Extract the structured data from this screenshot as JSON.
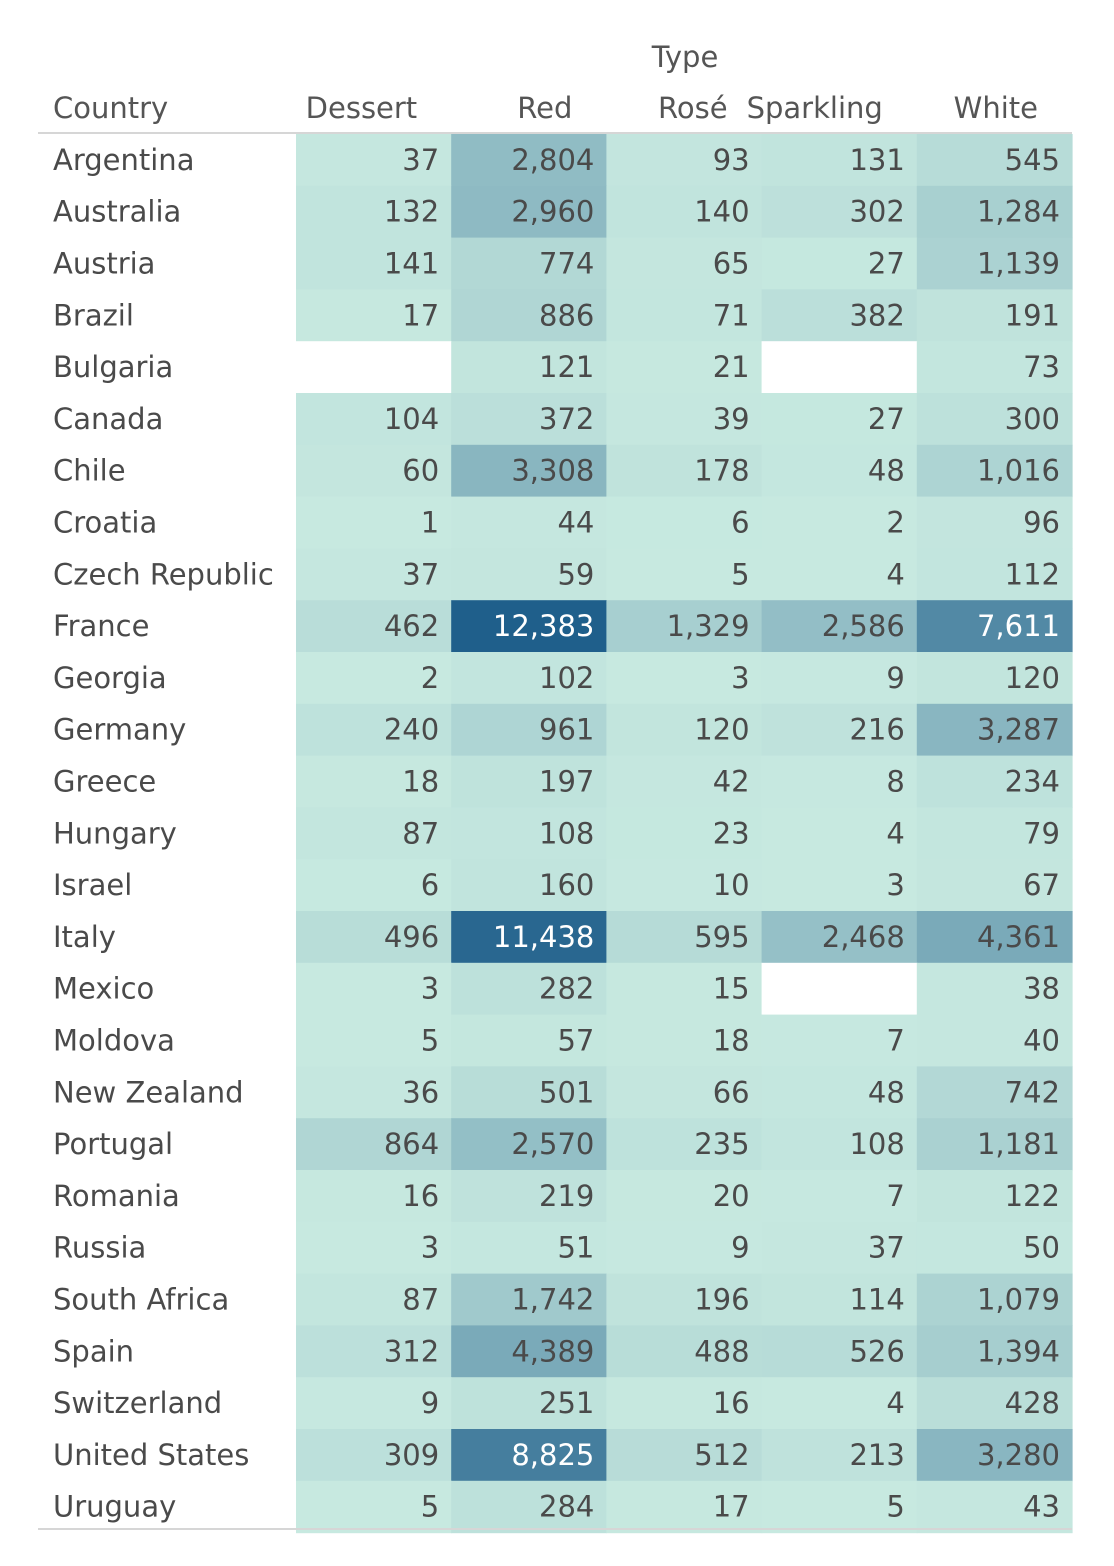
{
  "chart_data": {
    "type": "heatmap",
    "column_group_label": "Type",
    "row_header": "Country",
    "columns": [
      "Dessert",
      "Red",
      "Rosé",
      "Sparkling",
      "White"
    ],
    "rows": [
      {
        "country": "Argentina",
        "values": [
          "37",
          "2,804",
          "93",
          "131",
          "545"
        ]
      },
      {
        "country": "Australia",
        "values": [
          "132",
          "2,960",
          "140",
          "302",
          "1,284"
        ]
      },
      {
        "country": "Austria",
        "values": [
          "141",
          "774",
          "65",
          "27",
          "1,139"
        ]
      },
      {
        "country": "Brazil",
        "values": [
          "17",
          "886",
          "71",
          "382",
          "191"
        ]
      },
      {
        "country": "Bulgaria",
        "values": [
          null,
          "121",
          "21",
          null,
          "73"
        ]
      },
      {
        "country": "Canada",
        "values": [
          "104",
          "372",
          "39",
          "27",
          "300"
        ]
      },
      {
        "country": "Chile",
        "values": [
          "60",
          "3,308",
          "178",
          "48",
          "1,016"
        ]
      },
      {
        "country": "Croatia",
        "values": [
          "1",
          "44",
          "6",
          "2",
          "96"
        ]
      },
      {
        "country": "Czech Republic",
        "values": [
          "37",
          "59",
          "5",
          "4",
          "112"
        ]
      },
      {
        "country": "France",
        "values": [
          "462",
          "12,383",
          "1,329",
          "2,586",
          "7,611"
        ]
      },
      {
        "country": "Georgia",
        "values": [
          "2",
          "102",
          "3",
          "9",
          "120"
        ]
      },
      {
        "country": "Germany",
        "values": [
          "240",
          "961",
          "120",
          "216",
          "3,287"
        ]
      },
      {
        "country": "Greece",
        "values": [
          "18",
          "197",
          "42",
          "8",
          "234"
        ]
      },
      {
        "country": "Hungary",
        "values": [
          "87",
          "108",
          "23",
          "4",
          "79"
        ]
      },
      {
        "country": "Israel",
        "values": [
          "6",
          "160",
          "10",
          "3",
          "67"
        ]
      },
      {
        "country": "Italy",
        "values": [
          "496",
          "11,438",
          "595",
          "2,468",
          "4,361"
        ]
      },
      {
        "country": "Mexico",
        "values": [
          "3",
          "282",
          "15",
          null,
          "38"
        ]
      },
      {
        "country": "Moldova",
        "values": [
          "5",
          "57",
          "18",
          "7",
          "40"
        ]
      },
      {
        "country": "New Zealand",
        "values": [
          "36",
          "501",
          "66",
          "48",
          "742"
        ]
      },
      {
        "country": "Portugal",
        "values": [
          "864",
          "2,570",
          "235",
          "108",
          "1,181"
        ]
      },
      {
        "country": "Romania",
        "values": [
          "16",
          "219",
          "20",
          "7",
          "122"
        ]
      },
      {
        "country": "Russia",
        "values": [
          "3",
          "51",
          "9",
          "37",
          "50"
        ]
      },
      {
        "country": "South Africa",
        "values": [
          "87",
          "1,742",
          "196",
          "114",
          "1,079"
        ]
      },
      {
        "country": "Spain",
        "values": [
          "312",
          "4,389",
          "488",
          "526",
          "1,394"
        ]
      },
      {
        "country": "Switzerland",
        "values": [
          "9",
          "251",
          "16",
          "4",
          "428"
        ]
      },
      {
        "country": "United States",
        "values": [
          "309",
          "8,825",
          "512",
          "213",
          "3,280"
        ]
      },
      {
        "country": "Uruguay",
        "values": [
          "5",
          "284",
          "17",
          "5",
          "43"
        ]
      }
    ],
    "color_range": [
      "#c7e9e0",
      "#1f5f8b"
    ],
    "empty_cell_color": "#ffffff"
  }
}
